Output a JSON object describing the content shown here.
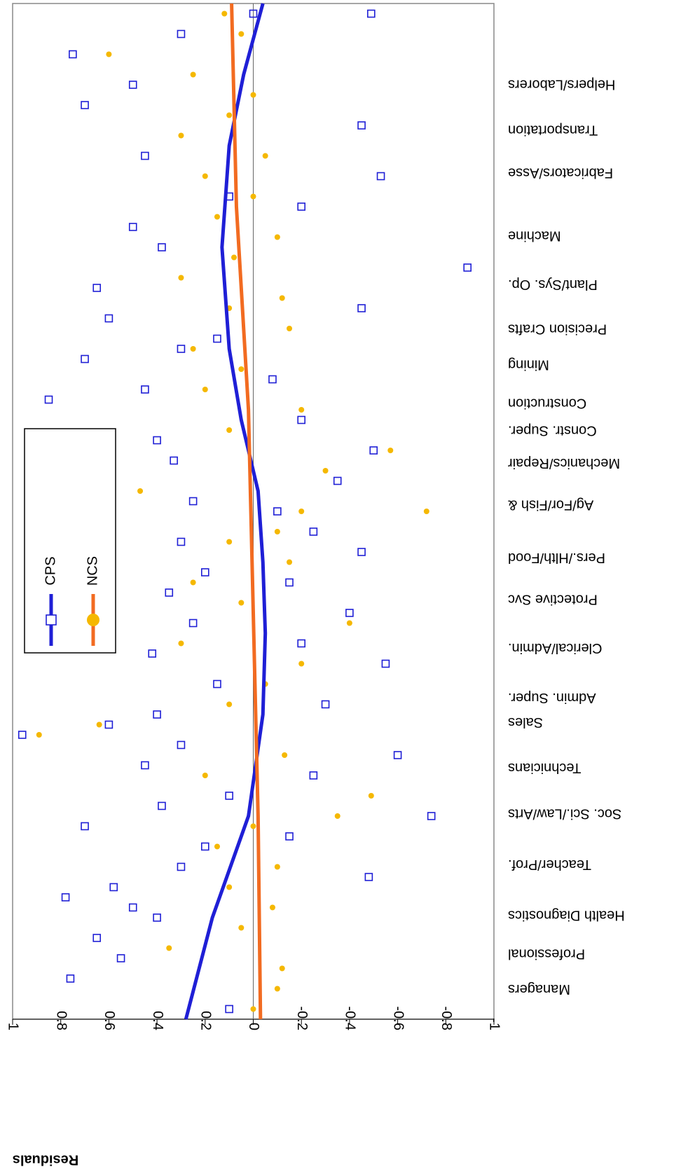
{
  "chart_data": {
    "type": "scatter",
    "ylabel": "Residuals",
    "ylim": [
      -1,
      1
    ],
    "yticks": [
      1,
      0.8,
      0.6,
      0.4,
      0.2,
      0,
      -0.2,
      -0.4,
      -0.6,
      -0.8,
      -1
    ],
    "xlim": [
      0,
      100
    ],
    "xticks": [
      {
        "value": 3,
        "label": "Managers"
      },
      {
        "value": 6.5,
        "label": "Professional"
      },
      {
        "value": 10.3,
        "label": "Health Diagnostics"
      },
      {
        "value": 15.3,
        "label": "Teacher/Prof."
      },
      {
        "value": 20.3,
        "label": "Soc. Sci./Law/Arts"
      },
      {
        "value": 24.8,
        "label": "Technicians"
      },
      {
        "value": 29.3,
        "label": "Sales"
      },
      {
        "value": 31.7,
        "label": "Admin. Super."
      },
      {
        "value": 36.6,
        "label": "Clerical/Admin."
      },
      {
        "value": 41.4,
        "label": "Protective Svc"
      },
      {
        "value": 45.5,
        "label": "Pers./Hlth/Food"
      },
      {
        "value": 50.7,
        "label": "Ag/For/Fish &"
      },
      {
        "value": 54.8,
        "label": "Mechanics/Repair"
      },
      {
        "value": 58,
        "label": "Constr. Super."
      },
      {
        "value": 60.7,
        "label": "Construction"
      },
      {
        "value": 64.5,
        "label": "Mining"
      },
      {
        "value": 68,
        "label": "Precision Crafts"
      },
      {
        "value": 72.4,
        "label": "Plant/Sys. Op."
      },
      {
        "value": 77.2,
        "label": "Machine"
      },
      {
        "value": 83.4,
        "label": "Fabricators/Asse"
      },
      {
        "value": 87.6,
        "label": "Transportation"
      },
      {
        "value": 92.1,
        "label": "Helpers/Laborers"
      }
    ],
    "zero_line": true,
    "series": [
      {
        "name": "CPS",
        "color": "#1f1fd6",
        "marker": "square",
        "x": [
          4,
          1,
          6,
          8,
          10,
          11,
          12,
          13,
          14,
          15,
          17,
          18,
          20,
          19,
          21,
          22,
          24,
          25,
          26,
          27,
          28,
          29,
          30,
          31,
          33,
          35,
          36,
          37,
          39,
          40,
          42,
          43,
          44,
          46,
          47,
          48,
          50,
          51,
          53,
          55,
          56,
          57,
          59,
          61,
          62,
          63,
          65,
          66,
          67,
          69,
          70,
          72,
          74,
          76,
          78,
          80,
          81,
          83,
          85,
          88,
          90,
          92,
          95,
          97,
          99,
          99
        ],
        "y": [
          0.76,
          0.1,
          0.55,
          0.65,
          0.4,
          0.5,
          0.78,
          0.58,
          -0.48,
          0.3,
          0.2,
          -0.15,
          -0.74,
          0.7,
          0.38,
          0.1,
          -0.25,
          0.45,
          -0.6,
          0.3,
          0.96,
          0.6,
          0.4,
          -0.3,
          0.15,
          -0.55,
          0.42,
          -0.2,
          0.25,
          -0.4,
          0.35,
          -0.15,
          0.2,
          -0.45,
          0.3,
          -0.25,
          -0.1,
          0.25,
          -0.35,
          0.33,
          -0.5,
          0.4,
          -0.2,
          0.85,
          0.45,
          -0.08,
          0.7,
          0.3,
          0.15,
          0.6,
          -0.45,
          0.65,
          -0.89,
          0.38,
          0.5,
          -0.2,
          0.1,
          -0.53,
          0.45,
          -0.45,
          0.7,
          0.5,
          0.75,
          0.3,
          -0.49,
          0
        ],
        "trend": {
          "x": [
            0,
            10,
            20,
            30,
            38,
            45,
            52,
            59,
            66,
            76,
            86,
            93,
            100
          ],
          "y": [
            0.28,
            0.17,
            0.02,
            -0.04,
            -0.05,
            -0.04,
            -0.02,
            0.05,
            0.1,
            0.13,
            0.1,
            0.04,
            -0.04
          ]
        }
      },
      {
        "name": "NCS",
        "color": "#f5b800",
        "line_color": "#f26b21",
        "marker": "circle",
        "x": [
          1,
          3,
          5,
          7,
          9,
          11,
          13,
          15,
          17,
          19,
          20,
          22,
          24,
          26,
          28,
          29,
          31,
          33,
          35,
          37,
          39,
          41,
          43,
          45,
          47,
          48,
          50,
          50,
          52,
          54,
          56,
          58,
          60,
          62,
          64,
          66,
          68,
          70,
          71,
          73,
          75,
          77,
          79,
          81,
          83,
          85,
          87,
          89,
          91,
          93,
          95,
          97,
          99
        ],
        "y": [
          0,
          -0.1,
          -0.12,
          0.35,
          0.05,
          -0.08,
          0.1,
          -0.1,
          0.15,
          0,
          -0.35,
          -0.49,
          0.2,
          -0.13,
          0.89,
          0.64,
          0.1,
          -0.05,
          -0.2,
          0.3,
          -0.4,
          0.05,
          0.25,
          -0.15,
          0.1,
          -0.1,
          -0.2,
          -0.72,
          0.47,
          -0.3,
          -0.57,
          0.1,
          -0.2,
          0.2,
          0.05,
          0.25,
          -0.15,
          0.1,
          -0.12,
          0.3,
          0.08,
          -0.1,
          0.15,
          0,
          0.2,
          -0.05,
          0.3,
          0.1,
          0,
          0.25,
          0.6,
          0.05,
          0.12
        ],
        "trend": {
          "x": [
            0,
            20,
            40,
            60,
            80,
            100
          ],
          "y": [
            -0.03,
            -0.02,
            0,
            0.02,
            0.07,
            0.09
          ]
        }
      }
    ]
  }
}
